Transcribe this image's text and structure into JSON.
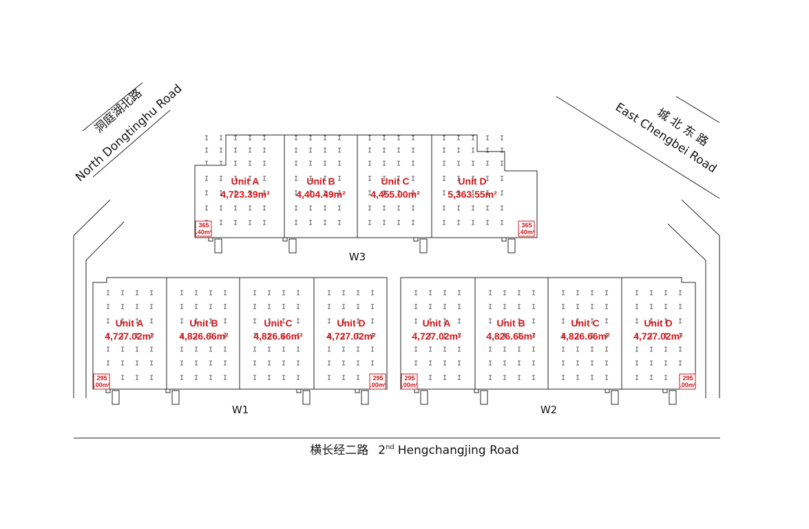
{
  "roads": {
    "north_dongtinghu": {
      "zh": "洞庭湖北路",
      "en": "North Dongtinghu Road"
    },
    "east_chengbei": {
      "zh": "城 北 东 路",
      "en": "East Chengbei Road"
    },
    "hengchangjing": {
      "zh": "横长经二路",
      "en_prefix": "2",
      "en_sup": "nd",
      "en_rest": "Hengchangjing Road"
    }
  },
  "buildings": [
    {
      "label": "W3",
      "units": [
        {
          "name": "Unit A",
          "area": "4,723.39m²"
        },
        {
          "name": "Unit B",
          "area": "4,404.49m²"
        },
        {
          "name": "Unit C",
          "area": "4,455.00m²"
        },
        {
          "name": "Unit D",
          "area": "5,363.55m²"
        }
      ],
      "offices": [
        [
          "365",
          ".40m²"
        ],
        [
          "365",
          ".40m²"
        ]
      ]
    },
    {
      "label": "W1",
      "units": [
        {
          "name": "Unit A",
          "area": "4,727.02m²"
        },
        {
          "name": "Unit B",
          "area": "4,826.66m²"
        },
        {
          "name": "Unit C",
          "area": "4,826.66m²"
        },
        {
          "name": "Unit D",
          "area": "4,727.02m²"
        }
      ],
      "offices": [
        [
          "295",
          ".00m²"
        ],
        [
          "295",
          ".00m²"
        ]
      ]
    },
    {
      "label": "W2",
      "units": [
        {
          "name": "Unit A",
          "area": "4,727.02m²"
        },
        {
          "name": "Unit B",
          "area": "4,826.66m²"
        },
        {
          "name": "Unit C",
          "area": "4,826.66m²"
        },
        {
          "name": "Unit D",
          "area": "4,727.02m²"
        }
      ],
      "offices": [
        [
          "295",
          ".00m²"
        ],
        [
          "295",
          ".00m²"
        ]
      ]
    }
  ]
}
